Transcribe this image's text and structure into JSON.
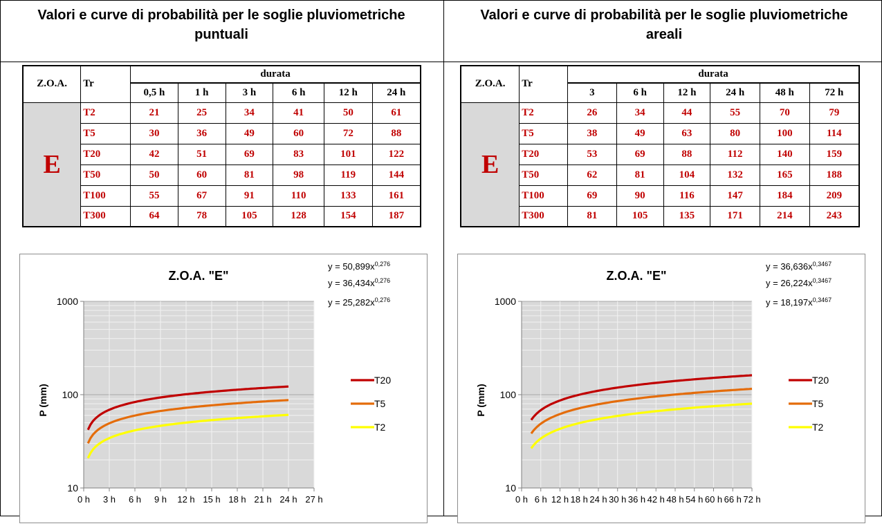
{
  "panels": [
    {
      "title": "Valori e curve di probabilità per le soglie pluviometriche puntuali",
      "table": {
        "zoa_header": "Z.O.A.",
        "tr_header": "Tr",
        "durata_header": "durata",
        "durations": [
          "0,5 h",
          "1 h",
          "3 h",
          "6 h",
          "12 h",
          "24 h"
        ],
        "zoa_value": "E",
        "rows": [
          {
            "tr": "T2",
            "values": [
              "21",
              "25",
              "34",
              "41",
              "50",
              "61"
            ]
          },
          {
            "tr": "T5",
            "values": [
              "30",
              "36",
              "49",
              "60",
              "72",
              "88"
            ]
          },
          {
            "tr": "T20",
            "values": [
              "42",
              "51",
              "69",
              "83",
              "101",
              "122"
            ]
          },
          {
            "tr": "T50",
            "values": [
              "50",
              "60",
              "81",
              "98",
              "119",
              "144"
            ]
          },
          {
            "tr": "T100",
            "values": [
              "55",
              "67",
              "91",
              "110",
              "133",
              "161"
            ]
          },
          {
            "tr": "T300",
            "values": [
              "64",
              "78",
              "105",
              "128",
              "154",
              "187"
            ]
          }
        ]
      }
    },
    {
      "title": "Valori e curve di probabilità per le soglie pluviometriche areali",
      "table": {
        "zoa_header": "Z.O.A.",
        "tr_header": "Tr",
        "durata_header": "durata",
        "durations": [
          "3",
          "6 h",
          "12 h",
          "24 h",
          "48 h",
          "72 h"
        ],
        "zoa_value": "E",
        "rows": [
          {
            "tr": "T2",
            "values": [
              "26",
              "34",
              "44",
              "55",
              "70",
              "79"
            ]
          },
          {
            "tr": "T5",
            "values": [
              "38",
              "49",
              "63",
              "80",
              "100",
              "114"
            ]
          },
          {
            "tr": "T20",
            "values": [
              "53",
              "69",
              "88",
              "112",
              "140",
              "159"
            ]
          },
          {
            "tr": "T50",
            "values": [
              "62",
              "81",
              "104",
              "132",
              "165",
              "188"
            ]
          },
          {
            "tr": "T100",
            "values": [
              "69",
              "90",
              "116",
              "147",
              "184",
              "209"
            ]
          },
          {
            "tr": "T300",
            "values": [
              "81",
              "105",
              "135",
              "171",
              "214",
              "243"
            ]
          }
        ]
      }
    }
  ],
  "chart_data": [
    {
      "type": "line",
      "title": "Z.O.A. \"E\"",
      "ylabel": "P (mm)",
      "xlabel": "",
      "y_scale": "log",
      "ylim": [
        10,
        1000
      ],
      "xlim": [
        0,
        27
      ],
      "y_ticks": [
        "10",
        "100",
        "1000"
      ],
      "x_ticks": [
        "0 h",
        "3 h",
        "6 h",
        "9 h",
        "12 h",
        "15 h",
        "18 h",
        "21 h",
        "24 h",
        "27 h"
      ],
      "x_tick_values": [
        0,
        3,
        6,
        9,
        12,
        15,
        18,
        21,
        24,
        27
      ],
      "grid": true,
      "legend_position": "right",
      "equations": [
        {
          "prefix": "y = 50,899x",
          "exp": "0,276"
        },
        {
          "prefix": "y = 36,434x",
          "exp": "0,276"
        },
        {
          "prefix": "y = 25,282x",
          "exp": "0,276"
        }
      ],
      "series": [
        {
          "name": "T20",
          "color": "#c00000",
          "x": [
            0.5,
            1,
            3,
            6,
            12,
            24
          ],
          "values": [
            42,
            51,
            69,
            83,
            101,
            122
          ],
          "fit": {
            "a": 50.899,
            "b": 0.276
          }
        },
        {
          "name": "T5",
          "color": "#e46c0a",
          "x": [
            0.5,
            1,
            3,
            6,
            12,
            24
          ],
          "values": [
            30,
            36,
            49,
            60,
            72,
            88
          ],
          "fit": {
            "a": 36.434,
            "b": 0.276
          }
        },
        {
          "name": "T2",
          "color": "#ffff00",
          "x": [
            0.5,
            1,
            3,
            6,
            12,
            24
          ],
          "values": [
            21,
            25,
            34,
            41,
            50,
            61
          ],
          "fit": {
            "a": 25.282,
            "b": 0.276
          }
        }
      ]
    },
    {
      "type": "line",
      "title": "Z.O.A. \"E\"",
      "ylabel": "P (mm)",
      "xlabel": "",
      "y_scale": "log",
      "ylim": [
        10,
        1000
      ],
      "xlim": [
        0,
        72
      ],
      "y_ticks": [
        "10",
        "100",
        "1000"
      ],
      "x_ticks": [
        "0 h",
        "6 h",
        "12 h",
        "18 h",
        "24 h",
        "30 h",
        "36 h",
        "42 h",
        "48 h",
        "54 h",
        "60 h",
        "66 h",
        "72 h"
      ],
      "x_tick_values": [
        0,
        6,
        12,
        18,
        24,
        30,
        36,
        42,
        48,
        54,
        60,
        66,
        72
      ],
      "grid": true,
      "legend_position": "right",
      "equations": [
        {
          "prefix": "y = 36,636x",
          "exp": "0,3467"
        },
        {
          "prefix": "y = 26,224x",
          "exp": "0,3467"
        },
        {
          "prefix": "y = 18,197x",
          "exp": "0,3467"
        }
      ],
      "series": [
        {
          "name": "T20",
          "color": "#c00000",
          "x": [
            3,
            6,
            12,
            24,
            48,
            72
          ],
          "values": [
            53,
            69,
            88,
            112,
            140,
            159
          ],
          "fit": {
            "a": 36.636,
            "b": 0.3467
          }
        },
        {
          "name": "T5",
          "color": "#e46c0a",
          "x": [
            3,
            6,
            12,
            24,
            48,
            72
          ],
          "values": [
            38,
            49,
            63,
            80,
            100,
            114
          ],
          "fit": {
            "a": 26.224,
            "b": 0.3467
          }
        },
        {
          "name": "T2",
          "color": "#ffff00",
          "x": [
            3,
            6,
            12,
            24,
            48,
            72
          ],
          "values": [
            26,
            34,
            44,
            55,
            70,
            79
          ],
          "fit": {
            "a": 18.197,
            "b": 0.3467
          }
        }
      ]
    }
  ]
}
